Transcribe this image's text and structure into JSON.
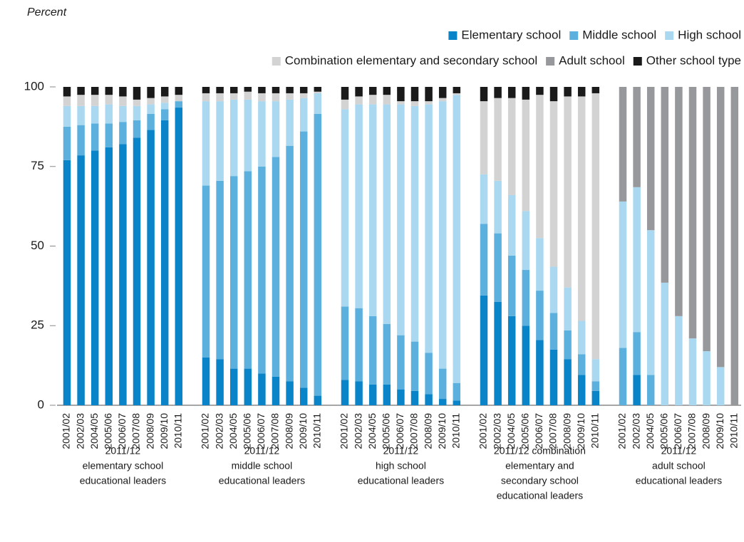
{
  "chart_data": {
    "type": "stacked_bar",
    "y_axis_label": "Percent",
    "groups": [
      {
        "label": [
          "2011/12",
          "elementary school",
          "educational leaders"
        ],
        "categories": [
          "2001/02",
          "2002/03",
          "2004/05",
          "2005/06",
          "2006/07",
          "2007/08",
          "2008/09",
          "2009/10",
          "2010/11"
        ]
      },
      {
        "label": [
          "2011/12",
          "middle school",
          "educational leaders"
        ],
        "categories": [
          "2001/02",
          "2002/03",
          "2004/05",
          "2005/06",
          "2006/07",
          "2007/08",
          "2008/09",
          "2009/10",
          "2010/11"
        ]
      },
      {
        "label": [
          "2011/12",
          "high school",
          "educational leaders"
        ],
        "categories": [
          "2001/02",
          "2002/03",
          "2004/05",
          "2005/06",
          "2006/07",
          "2007/08",
          "2008/09",
          "2009/10",
          "2010/11"
        ]
      },
      {
        "label": [
          "2011/12 combination",
          "elementary and",
          "secondary school",
          "educational leaders"
        ],
        "categories": [
          "2001/02",
          "2002/03",
          "2004/05",
          "2005/06",
          "2006/07",
          "2007/08",
          "2008/09",
          "2009/10",
          "2010/11"
        ]
      },
      {
        "label": [
          "2011/12",
          "adult school",
          "educational leaders"
        ],
        "categories": [
          "2001/02",
          "2002/03",
          "2004/05",
          "2005/06",
          "2006/07",
          "2007/08",
          "2008/09",
          "2009/10",
          "2010/11"
        ]
      }
    ],
    "series": [
      {
        "name": "Elementary school",
        "color": "#0a84c8",
        "values": [
          [
            77,
            78.5,
            80,
            81,
            82,
            84,
            86.5,
            89.5,
            93.5
          ],
          [
            15,
            14.5,
            11.5,
            11.5,
            10,
            9,
            7.5,
            5.5,
            3
          ],
          [
            8,
            7.5,
            6.5,
            6.5,
            5,
            4.5,
            3.5,
            2,
            1.5
          ],
          [
            34.5,
            32.5,
            28,
            25,
            20.5,
            17.5,
            14.5,
            9.5,
            4.5
          ],
          [
            0,
            9.5,
            0,
            0,
            0,
            0,
            0,
            0,
            0
          ]
        ]
      },
      {
        "name": "Middle school",
        "color": "#5cb0de",
        "values": [
          [
            10.5,
            9.5,
            8.5,
            7.5,
            7,
            5.5,
            5,
            3.5,
            2
          ],
          [
            54,
            56,
            60.5,
            62,
            65,
            69,
            74,
            80.5,
            88.5
          ],
          [
            23,
            23,
            21.5,
            19,
            17,
            15.5,
            13,
            9.5,
            5.5
          ],
          [
            22.5,
            21.5,
            19,
            17.5,
            15.5,
            11.5,
            9,
            6.5,
            3
          ],
          [
            18,
            13.5,
            9.5,
            0,
            0,
            0,
            0,
            0,
            0
          ]
        ]
      },
      {
        "name": "High school",
        "color": "#a9d8f0",
        "values": [
          [
            6.5,
            6,
            5.5,
            6,
            5,
            4.5,
            3,
            2,
            0
          ],
          [
            26.5,
            25,
            24,
            22.5,
            20.5,
            17.5,
            14.5,
            10.5,
            6.5
          ],
          [
            62,
            64,
            66.5,
            69,
            72.5,
            74,
            78,
            84,
            90.5
          ],
          [
            15.5,
            16.5,
            19,
            18.5,
            16.5,
            14.5,
            13.5,
            10.5,
            7
          ],
          [
            46,
            45.5,
            45.5,
            38.5,
            28,
            21,
            17,
            12,
            0
          ]
        ]
      },
      {
        "name": "Combination elementary and secondary school",
        "color": "#d3d3d3",
        "values": [
          [
            3,
            3.5,
            3.5,
            3,
            3,
            2,
            2,
            2,
            2
          ],
          [
            2.5,
            2.5,
            2,
            2.5,
            2.5,
            2.5,
            2,
            1.5,
            0.5
          ],
          [
            3,
            2.5,
            3,
            3,
            1,
            1.5,
            1,
            1,
            0.5
          ],
          [
            23,
            26,
            30.5,
            35,
            45,
            52,
            60,
            70.5,
            83.5
          ],
          [
            0,
            0,
            0,
            0,
            0,
            0,
            0,
            0,
            0
          ]
        ]
      },
      {
        "name": "Adult school",
        "color": "#97989b",
        "values": [
          [
            0,
            0,
            0,
            0,
            0,
            0,
            0,
            0,
            0
          ],
          [
            0,
            0,
            0,
            0,
            0,
            0,
            0,
            0,
            0
          ],
          [
            0,
            0,
            0,
            0,
            0,
            0,
            0,
            0,
            0
          ],
          [
            0,
            0,
            0,
            0,
            0,
            0,
            0,
            0,
            0
          ],
          [
            36,
            31.5,
            45,
            61.5,
            72,
            79,
            83,
            88,
            100
          ]
        ]
      },
      {
        "name": "Other school type",
        "color": "#1a1a1a",
        "values": [
          [
            3,
            2.5,
            2.5,
            2.5,
            3,
            4,
            3.5,
            3,
            2.5
          ],
          [
            2,
            2,
            2,
            1.5,
            2,
            2,
            2,
            2,
            1.5
          ],
          [
            4,
            3,
            2.5,
            2.5,
            4.5,
            4.5,
            4.5,
            3.5,
            2
          ],
          [
            4.5,
            3.5,
            3.5,
            4,
            2.5,
            4.5,
            3,
            3,
            2
          ],
          [
            0,
            0,
            0,
            0,
            0,
            0,
            0,
            0,
            0
          ]
        ]
      }
    ],
    "ylim": [
      0,
      100
    ],
    "yticks": [
      0,
      25,
      50,
      75,
      100
    ]
  }
}
